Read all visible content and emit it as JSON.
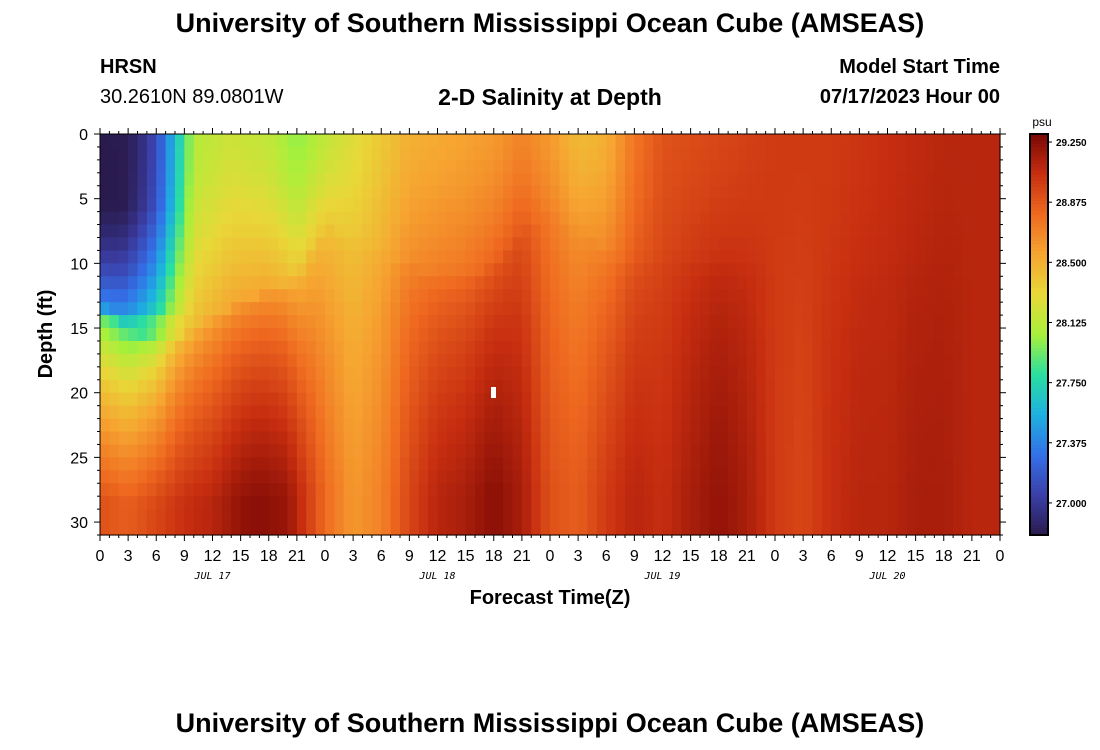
{
  "header": {
    "title": "University of Southern Mississippi Ocean Cube (AMSEAS)",
    "station": "HRSN",
    "coords": "30.2610N  89.0801W",
    "subtitle": "2-D Salinity at Depth",
    "model_label": "Model Start Time",
    "model_time": "07/17/2023 Hour 00"
  },
  "footer": {
    "title": "University of Southern Mississippi Ocean Cube (AMSEAS)"
  },
  "chart_data": {
    "type": "heatmap",
    "title": "2-D Salinity at Depth",
    "xlabel": "Forecast Time(Z)",
    "ylabel": "Depth (ft)",
    "x_tick_labels": [
      "0",
      "3",
      "6",
      "9",
      "12",
      "15",
      "18",
      "21",
      "0",
      "3",
      "6",
      "9",
      "12",
      "15",
      "18",
      "21",
      "0",
      "3",
      "6",
      "9",
      "12",
      "15",
      "18",
      "21",
      "0",
      "3",
      "6",
      "9",
      "12",
      "15",
      "18",
      "21",
      "0"
    ],
    "day_labels": [
      "JUL 17",
      "JUL 18",
      "JUL 19",
      "JUL 20"
    ],
    "y_ticks": [
      0,
      5,
      10,
      15,
      20,
      25,
      30
    ],
    "y_tick_labels": [
      "0",
      "5",
      "10",
      "15",
      "20",
      "25",
      "30"
    ],
    "y_range_ft": [
      0,
      31
    ],
    "x_range_hours": [
      0,
      96
    ],
    "colorbar": {
      "unit": "psu",
      "ticks": [
        29.25,
        28.875,
        28.5,
        28.125,
        27.75,
        27.375,
        27.0
      ],
      "tick_labels": [
        "29.250",
        "28.875",
        "28.500",
        "28.125",
        "27.750",
        "27.375",
        "27.000"
      ],
      "range": [
        26.8,
        29.3
      ],
      "colors": [
        "#2a1b4e",
        "#3b3fa8",
        "#3470e8",
        "#1db0e0",
        "#2adfa0",
        "#a8f03a",
        "#e8d838",
        "#f6a531",
        "#ef6a20",
        "#c72e10",
        "#7a0704"
      ]
    },
    "surface_profile": [
      {
        "x": 0,
        "v": 27.0
      },
      {
        "x": 3,
        "v": 27.1
      },
      {
        "x": 6,
        "v": 27.45
      },
      {
        "x": 8,
        "v": 27.9
      },
      {
        "x": 10,
        "v": 28.1
      },
      {
        "x": 14,
        "v": 28.2
      },
      {
        "x": 18,
        "v": 28.15
      },
      {
        "x": 21,
        "v": 28.0
      },
      {
        "x": 24,
        "v": 28.15
      },
      {
        "x": 28,
        "v": 28.3
      },
      {
        "x": 33,
        "v": 28.5
      },
      {
        "x": 38,
        "v": 28.55
      },
      {
        "x": 42,
        "v": 28.6
      },
      {
        "x": 45,
        "v": 28.7
      },
      {
        "x": 48,
        "v": 28.6
      },
      {
        "x": 51,
        "v": 28.45
      },
      {
        "x": 54,
        "v": 28.5
      },
      {
        "x": 57,
        "v": 28.75
      },
      {
        "x": 60,
        "v": 28.9
      },
      {
        "x": 66,
        "v": 28.95
      },
      {
        "x": 72,
        "v": 29.0
      },
      {
        "x": 78,
        "v": 29.0
      },
      {
        "x": 84,
        "v": 29.05
      },
      {
        "x": 90,
        "v": 29.1
      },
      {
        "x": 96,
        "v": 29.1
      }
    ],
    "bottom_profile": [
      {
        "x": 0,
        "v": 28.9
      },
      {
        "x": 3,
        "v": 28.85
      },
      {
        "x": 6,
        "v": 28.95
      },
      {
        "x": 9,
        "v": 29.05
      },
      {
        "x": 12,
        "v": 29.1
      },
      {
        "x": 15,
        "v": 29.22
      },
      {
        "x": 17,
        "v": 29.25
      },
      {
        "x": 20,
        "v": 29.2
      },
      {
        "x": 22,
        "v": 29.0
      },
      {
        "x": 24,
        "v": 28.8
      },
      {
        "x": 27,
        "v": 28.6
      },
      {
        "x": 30,
        "v": 28.7
      },
      {
        "x": 33,
        "v": 28.95
      },
      {
        "x": 36,
        "v": 29.1
      },
      {
        "x": 39,
        "v": 29.15
      },
      {
        "x": 42,
        "v": 29.25
      },
      {
        "x": 45,
        "v": 29.15
      },
      {
        "x": 48,
        "v": 28.9
      },
      {
        "x": 51,
        "v": 28.85
      },
      {
        "x": 54,
        "v": 29.0
      },
      {
        "x": 57,
        "v": 29.1
      },
      {
        "x": 60,
        "v": 29.05
      },
      {
        "x": 63,
        "v": 29.15
      },
      {
        "x": 66,
        "v": 29.22
      },
      {
        "x": 69,
        "v": 29.15
      },
      {
        "x": 72,
        "v": 29.0
      },
      {
        "x": 75,
        "v": 28.95
      },
      {
        "x": 78,
        "v": 29.05
      },
      {
        "x": 81,
        "v": 29.1
      },
      {
        "x": 84,
        "v": 29.1
      },
      {
        "x": 87,
        "v": 29.15
      },
      {
        "x": 90,
        "v": 29.15
      },
      {
        "x": 93,
        "v": 29.1
      },
      {
        "x": 96,
        "v": 29.1
      }
    ],
    "mixing_depth_profile": [
      {
        "x": 0,
        "v": 13
      },
      {
        "x": 3,
        "v": 15
      },
      {
        "x": 6,
        "v": 16
      },
      {
        "x": 9,
        "v": 15.5
      },
      {
        "x": 12,
        "v": 14
      },
      {
        "x": 15,
        "v": 13
      },
      {
        "x": 18,
        "v": 12
      },
      {
        "x": 21,
        "v": 11
      },
      {
        "x": 24,
        "v": 7
      },
      {
        "x": 27,
        "v": 8
      },
      {
        "x": 30,
        "v": 9
      },
      {
        "x": 33,
        "v": 10
      },
      {
        "x": 36,
        "v": 11
      },
      {
        "x": 39,
        "v": 11
      },
      {
        "x": 42,
        "v": 10
      },
      {
        "x": 45,
        "v": 7
      },
      {
        "x": 48,
        "v": 6
      },
      {
        "x": 51,
        "v": 7
      },
      {
        "x": 54,
        "v": 9
      },
      {
        "x": 57,
        "v": 10
      },
      {
        "x": 60,
        "v": 10
      },
      {
        "x": 63,
        "v": 10
      },
      {
        "x": 66,
        "v": 10
      },
      {
        "x": 69,
        "v": 10
      },
      {
        "x": 72,
        "v": 10
      },
      {
        "x": 78,
        "v": 10
      },
      {
        "x": 84,
        "v": 10
      },
      {
        "x": 90,
        "v": 10
      },
      {
        "x": 96,
        "v": 10
      }
    ],
    "fresh_lens": {
      "x_end_hours": 10,
      "depth_end_ft": 14,
      "core_value": 26.8
    }
  }
}
